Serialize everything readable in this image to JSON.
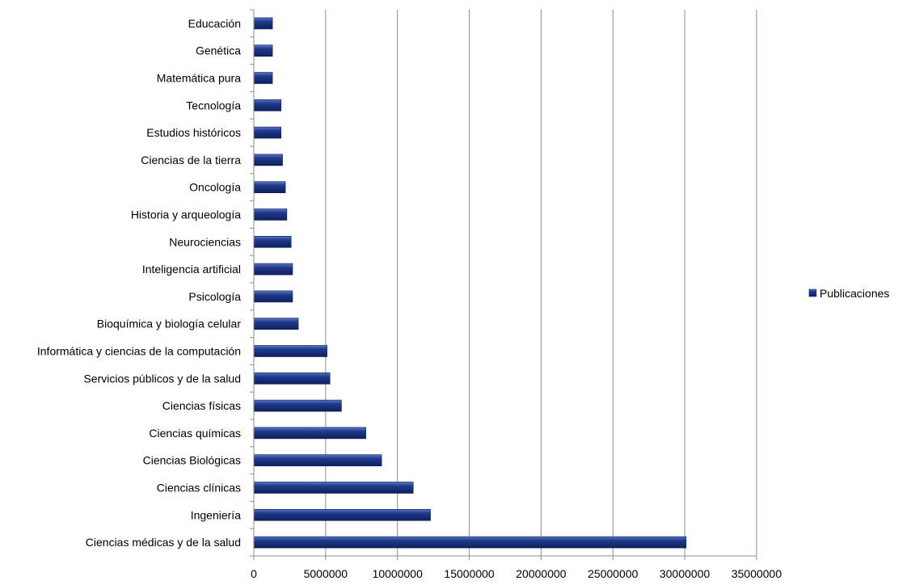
{
  "chart_data": {
    "type": "bar",
    "orientation": "horizontal",
    "title": "",
    "xlabel": "",
    "ylabel": "",
    "categories": [
      "Ciencias médicas y de la salud",
      "Ingeniería",
      "Ciencias clínicas",
      "Ciencias Biológicas",
      "Ciencias químicas",
      "Ciencias físicas",
      "Servicios públicos y de la salud",
      "Informática y ciencias de la computación",
      "Bioquímica y biología celular",
      "Psicología",
      "Inteligencia artificial",
      "Neurociencias",
      "Historia y arqueología",
      "Oncología",
      "Ciencias de la tierra",
      "Estudios históricos",
      "Tecnología",
      "Matemática pura",
      "Genética",
      "Educación"
    ],
    "series": [
      {
        "name": "Publicaciones",
        "values": [
          30100000,
          12300000,
          11100000,
          8900000,
          7800000,
          6100000,
          5300000,
          5100000,
          3100000,
          2700000,
          2700000,
          2600000,
          2300000,
          2200000,
          2000000,
          1900000,
          1900000,
          1300000,
          1300000,
          1300000
        ]
      }
    ],
    "xlim": [
      0,
      35000000
    ],
    "x_ticks": [
      "0",
      "5000000",
      "10000000",
      "15000000",
      "20000000",
      "25000000",
      "30000000",
      "35000000"
    ],
    "grid": "vertical",
    "legend_position": "right",
    "colors": {
      "bar": "#1f3a8a",
      "bar_dark": "#0f1f5c",
      "bar_light": "#5a74c4",
      "grid": "#8c8c8c",
      "axis": "#8c8c8c"
    }
  }
}
